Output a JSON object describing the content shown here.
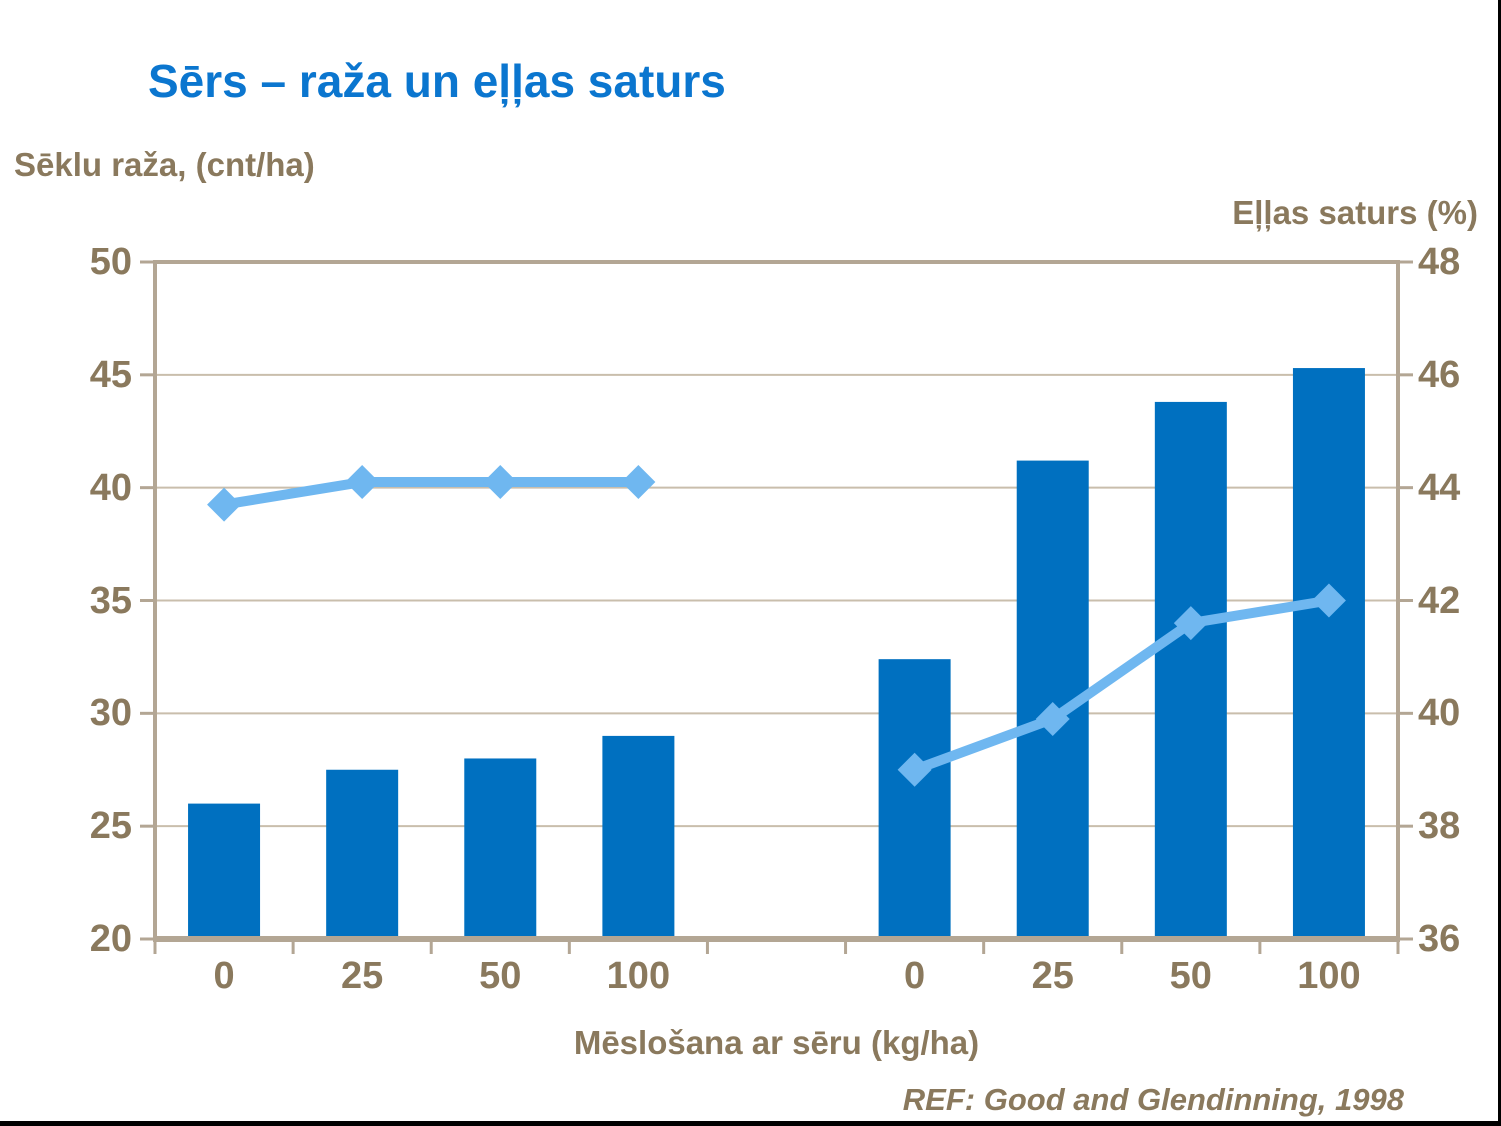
{
  "page": {
    "title": "Sērs – raža un eļļas saturs",
    "footer": "REF: Good and Glendinning, 1998"
  },
  "colors": {
    "title_blue": "#0B76CF",
    "bar_blue": "#0070C0",
    "line_light_blue": "#6FB7F0",
    "axis_text_brown": "#8A795D",
    "gridline_tan": "#C9BEAC",
    "frame_tan": "#B3A694",
    "slide_border_black": "#000000"
  },
  "chart_data": {
    "type": "bar",
    "subtype": "combo bar + line, dual y-axis, two category groups separated by a blank slot",
    "title": "Sērs – raža un eļļas saturs",
    "categories": [
      "0",
      "25",
      "50",
      "100",
      "",
      "0",
      "25",
      "50",
      "100"
    ],
    "series": [
      {
        "name": "Sēklu raža, (cnt/ha)",
        "type": "bar",
        "axis": "left",
        "values": [
          26.0,
          27.5,
          28.0,
          29.0,
          null,
          32.4,
          41.2,
          43.8,
          45.3
        ]
      },
      {
        "name": "Eļļas saturs (%)",
        "type": "line",
        "axis": "right",
        "marker": "diamond",
        "values": [
          43.7,
          44.1,
          44.1,
          44.1,
          null,
          39.0,
          39.9,
          41.6,
          42.0
        ]
      }
    ],
    "left_axis": {
      "label": "Sēklu raža, (cnt/ha)",
      "min": 20,
      "max": 50,
      "step": 5,
      "ticks": [
        50,
        45,
        40,
        35,
        30,
        25,
        20
      ]
    },
    "right_axis": {
      "label": "Eļļas saturs (%)",
      "min": 36,
      "max": 48,
      "step": 2,
      "ticks": [
        48,
        46,
        44,
        42,
        40,
        38,
        36
      ]
    },
    "x_axis": {
      "label": "Mēslošana ar sēru (kg/ha)"
    },
    "grid": true,
    "legend": "none"
  }
}
